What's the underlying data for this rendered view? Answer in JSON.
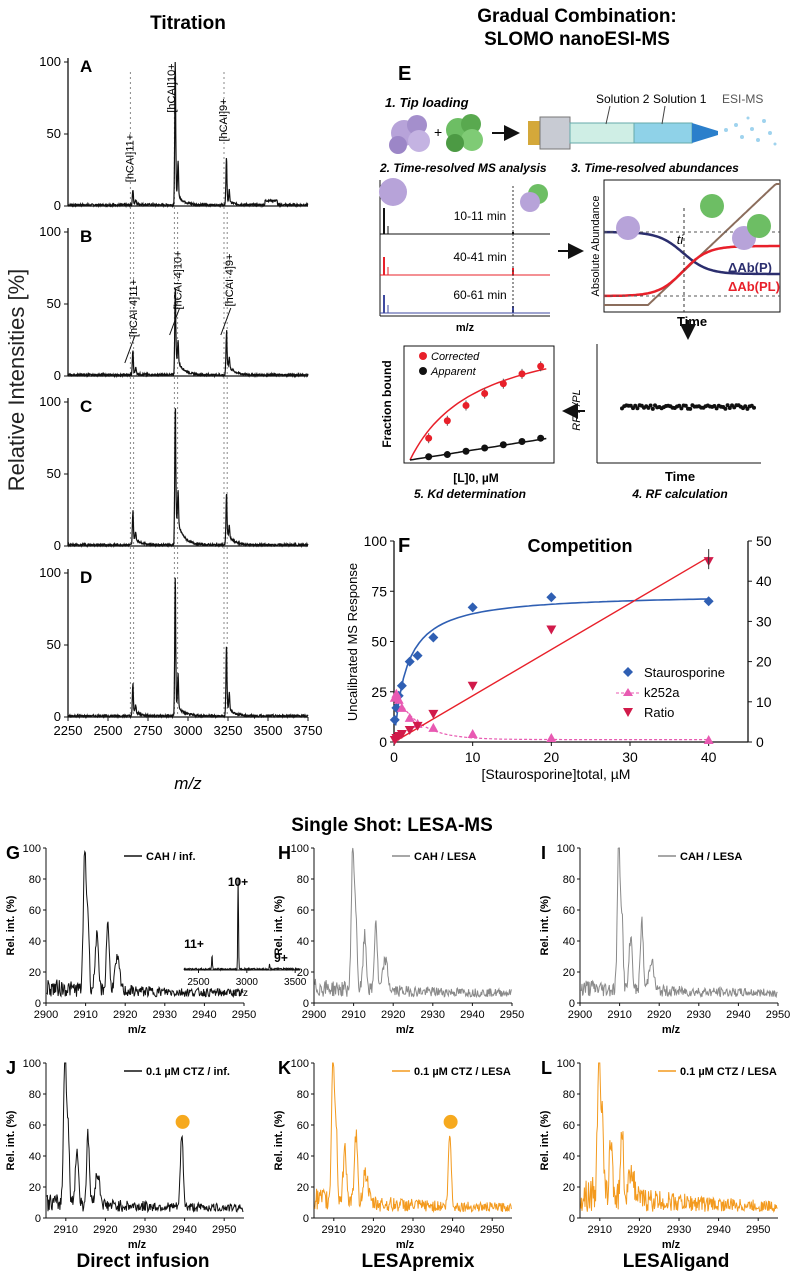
{
  "sections": {
    "titration": "Titration",
    "gradual_line1": "Gradual Combination:",
    "gradual_line2": "SLOMO nanoESI-MS",
    "single_shot": "Single Shot: LESA-MS"
  },
  "titration": {
    "ylabel": "Relative Intensities [%]",
    "xlabel": "m/z",
    "x_ticks": [
      "2250",
      "2500",
      "2750",
      "3000",
      "3250",
      "3500",
      "3750"
    ],
    "y_ticks": [
      "0",
      "50",
      "100"
    ],
    "panels": [
      {
        "label": "A",
        "annotations": [
          "[hCAI]11+",
          "[hCAI]10+",
          "[hCAI]9+"
        ]
      },
      {
        "label": "B",
        "annotations": [
          "[hCAI·4]11+",
          "[hCAI·4]10+",
          "[hCAI·4]9+"
        ]
      },
      {
        "label": "C",
        "annotations": []
      },
      {
        "label": "D",
        "annotations": []
      }
    ]
  },
  "panelE": {
    "label": "E",
    "step1": "1. Tip loading",
    "solution2": "Solution 2",
    "solution1": "Solution 1",
    "esi": "ESI-MS",
    "step2": "2. Time-resolved MS analysis",
    "step3": "3. Time-resolved abundances",
    "times": [
      "10-11 min",
      "40-41 min",
      "60-61 min"
    ],
    "mz": "m/z",
    "abs_ylabel": "Absolute Abundance",
    "ti": "ti",
    "dab_p": "ΔAb(P)",
    "dab_pl": "ΔAb(PL)",
    "time": "Time",
    "rf_ylabel": "RF P/PL",
    "fb_ylabel": "Fraction bound",
    "fb_xlabel": "[L]0, µM",
    "corrected": "Corrected",
    "apparent": "Apparent",
    "step4": "4. RF calculation",
    "step5": "5. Kd determination"
  },
  "panelF": {
    "label": "F",
    "title": "Competition",
    "ylabel": "Uncalibrated MS Response",
    "xlabel": "[Staurosporine]total, µM",
    "x_ticks": [
      "0",
      "10",
      "20",
      "30",
      "40"
    ],
    "y_left_ticks": [
      "0",
      "25",
      "50",
      "75",
      "100"
    ],
    "y_right_ticks": [
      "0",
      "10",
      "20",
      "30",
      "40",
      "50"
    ],
    "legend": [
      "Staurosporine",
      "k252a",
      "Ratio"
    ]
  },
  "lesa": {
    "ylabel": "Rel. int. (%)",
    "xlabel": "m/z",
    "y_ticks": [
      "0",
      "20",
      "40",
      "60",
      "80",
      "100"
    ],
    "top_x_ticks": [
      "2900",
      "2910",
      "2920",
      "2930",
      "2940",
      "2950"
    ],
    "bottom_x_ticks": [
      "2910",
      "2920",
      "2930",
      "2940",
      "2950"
    ],
    "inset_x_ticks": [
      "2500",
      "3000",
      "3500"
    ],
    "inset_xlabel": "m/z",
    "inset_labels": [
      "11+",
      "10+",
      "9+"
    ],
    "panels": [
      {
        "label": "G",
        "legend": "CAH / inf."
      },
      {
        "label": "H",
        "legend": "CAH / LESA"
      },
      {
        "label": "I",
        "legend": "CAH / LESA"
      },
      {
        "label": "J",
        "legend": "0.1 µM CTZ / inf."
      },
      {
        "label": "K",
        "legend": "0.1 µM CTZ / LESA"
      },
      {
        "label": "L",
        "legend": "0.1 µM CTZ / LESA"
      }
    ],
    "captions": [
      "Direct infusion",
      "LESApremix",
      "LESAligand"
    ]
  },
  "colors": {
    "red": "#e8202a",
    "blue": "#2f5fb3",
    "pink": "#e85ab2",
    "orange": "#f39a1e",
    "gray": "#8a8a8a",
    "navy": "#2b2e6e",
    "brown": "#8b6d5c",
    "protein_purple": "#b7a3d9",
    "protein_green": "#6dbe64"
  },
  "chart_data": [
    {
      "type": "line",
      "title": "Competition",
      "xlabel": "[Staurosporine]total, µM",
      "ylabel": "Uncalibrated MS Response",
      "xlim": [
        0,
        45
      ],
      "ylim": [
        0,
        100
      ],
      "y2lim": [
        0,
        50
      ],
      "series": [
        {
          "name": "Staurosporine",
          "x": [
            0.1,
            0.3,
            0.6,
            1,
            2,
            3,
            5,
            10,
            20,
            40
          ],
          "values": [
            11,
            17,
            23,
            28,
            40,
            43,
            52,
            67,
            72,
            70
          ]
        },
        {
          "name": "k252a",
          "x": [
            0.1,
            0.3,
            0.6,
            1,
            2,
            3,
            5,
            10,
            20,
            40
          ],
          "values": [
            22,
            24,
            21,
            17,
            12,
            9,
            7,
            4,
            2,
            1
          ]
        },
        {
          "name": "Ratio",
          "axis": "right",
          "x": [
            0.1,
            0.3,
            0.6,
            1,
            2,
            3,
            5,
            10,
            20,
            40
          ],
          "values": [
            0.5,
            1,
            1.5,
            2,
            3,
            4,
            7,
            14,
            28,
            45
          ]
        }
      ]
    },
    {
      "type": "scatter",
      "title": "Kd determination",
      "xlabel": "[L]0, µM",
      "ylabel": "Fraction bound",
      "series": [
        {
          "name": "Corrected",
          "x": [
            1,
            2,
            3,
            4,
            5,
            6,
            7
          ],
          "values": [
            0.2,
            0.36,
            0.5,
            0.61,
            0.7,
            0.79,
            0.86
          ]
        },
        {
          "name": "Apparent",
          "x": [
            1,
            2,
            3,
            4,
            5,
            6,
            7
          ],
          "values": [
            0.03,
            0.05,
            0.08,
            0.11,
            0.14,
            0.17,
            0.2
          ]
        }
      ]
    }
  ]
}
